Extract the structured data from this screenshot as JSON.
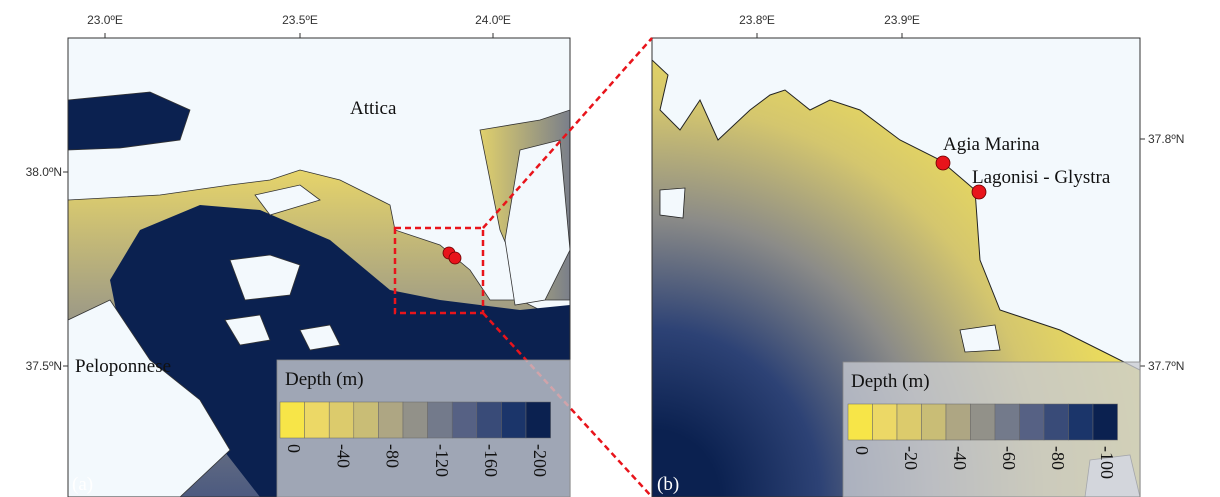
{
  "panels": [
    {
      "label": "(a)",
      "x_ticks": [
        "23.0ºE",
        "23.5ºE",
        "24.0ºE"
      ],
      "y_ticks": [
        "38.0ºN",
        "37.5ºN"
      ],
      "places": [
        "Attica",
        "Peloponnese"
      ],
      "legend": {
        "title": "Depth (m)",
        "range": [
          0,
          -200
        ],
        "ticks": [
          0,
          -40,
          -80,
          -120,
          -160,
          -200
        ],
        "colors": [
          "#f7e548",
          "#ecd866",
          "#dccb6c",
          "#c9bd76",
          "#aea683",
          "#929189",
          "#737a8b",
          "#566184",
          "#394b78",
          "#1b356a",
          "#0b2150"
        ]
      }
    },
    {
      "label": "(b)",
      "x_ticks": [
        "23.8ºE",
        "23.9ºE"
      ],
      "y_ticks": [
        "37.8ºN",
        "37.7ºN"
      ],
      "places": [
        "Agia Marina",
        "Lagonisi - Glystra"
      ],
      "legend": {
        "title": "Depth (m)",
        "range": [
          0,
          -100
        ],
        "ticks": [
          0,
          -20,
          -40,
          -60,
          -80,
          -100
        ],
        "colors": [
          "#f7e548",
          "#ecd866",
          "#dccb6c",
          "#c9bd76",
          "#aea683",
          "#929189",
          "#737a8b",
          "#566184",
          "#394b78",
          "#1b356a",
          "#0b2150"
        ]
      }
    }
  ]
}
